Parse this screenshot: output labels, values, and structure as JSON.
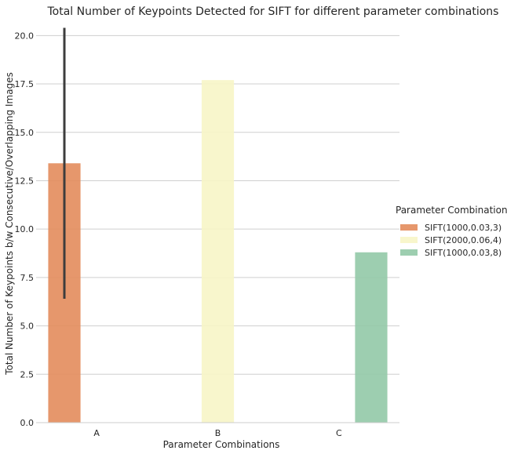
{
  "chart_data": {
    "type": "bar",
    "title": "Total Number of Keypoints Detected for SIFT for different parameter combinations",
    "xlabel": "Parameter Combinations",
    "ylabel": "Total Number of Keypoints b/w Consecutive/Overlapping Images",
    "categories": [
      "A",
      "B",
      "C"
    ],
    "ylim": [
      0,
      20.5
    ],
    "yticks": [
      "0.0",
      "2.5",
      "5.0",
      "7.5",
      "10.0",
      "12.5",
      "15.0",
      "17.5",
      "20.0"
    ],
    "ytick_values": [
      0,
      2.5,
      5,
      7.5,
      10,
      12.5,
      15,
      17.5,
      20
    ],
    "grid": true,
    "legend": {
      "title": "Parameter Combinations",
      "position": "right"
    },
    "series": [
      {
        "name": "SIFT(1000,0.03,3)",
        "color": "#e38c5c",
        "values": [
          13.4,
          null,
          null
        ],
        "error": [
          [
            6.4,
            20.4
          ],
          null,
          null
        ]
      },
      {
        "name": "SIFT(2000,0.06,4)",
        "color": "#f7f5c6",
        "values": [
          null,
          17.7,
          null
        ],
        "error": [
          null,
          null,
          null
        ]
      },
      {
        "name": "SIFT(1000,0.03,8)",
        "color": "#92c9a7",
        "values": [
          null,
          null,
          8.8
        ],
        "error": [
          null,
          null,
          null
        ]
      }
    ]
  }
}
